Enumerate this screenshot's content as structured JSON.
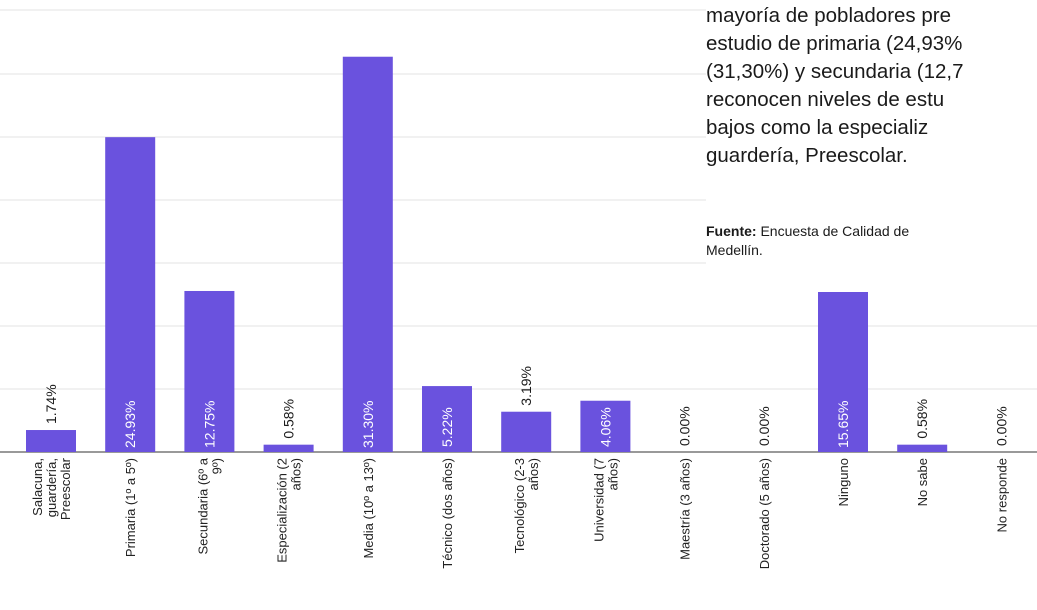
{
  "chart_data": {
    "type": "bar",
    "categories": [
      "Salacuna, guardería, Preescolar",
      "Primaria (1º a 5º)",
      "Secundaria (6º a 9º)",
      "Especialización (2 años)",
      "Media (10º a 13º)",
      "Técnico (dos años)",
      "Tecnológico (2-3 años)",
      "Universidad (7 años)",
      "Maestría (3 años)",
      "Doctorado (5 años)",
      "Ninguno",
      "No sabe",
      "No responde"
    ],
    "values": [
      1.74,
      24.93,
      12.75,
      0.58,
      31.3,
      5.22,
      3.19,
      4.06,
      0.0,
      0.0,
      15.65,
      0.58,
      0.0
    ],
    "labels": [
      "1.74%",
      "24.93%",
      "12.75%",
      "0.58%",
      "31.30%",
      "5.22%",
      "3.19%",
      "4.06%",
      "0.00%",
      "0.00%",
      "15.65%",
      "0.58%",
      "0.00%"
    ],
    "ylim": [
      0,
      35
    ],
    "grid": true,
    "bar_color": "#6a52de",
    "grid_color": "#e3e3e3"
  },
  "overlay": {
    "lines": [
      "mayoría de pobladores pre",
      "estudio de primaria (24,93%",
      "(31,30%) y secundaria (12,7",
      "reconocen niveles de estu",
      "bajos como la especializ",
      "guardería, Preescolar."
    ],
    "source_label": "Fuente:",
    "source_text": " Encuesta de Calidad de",
    "source_text2": "Medellín."
  }
}
